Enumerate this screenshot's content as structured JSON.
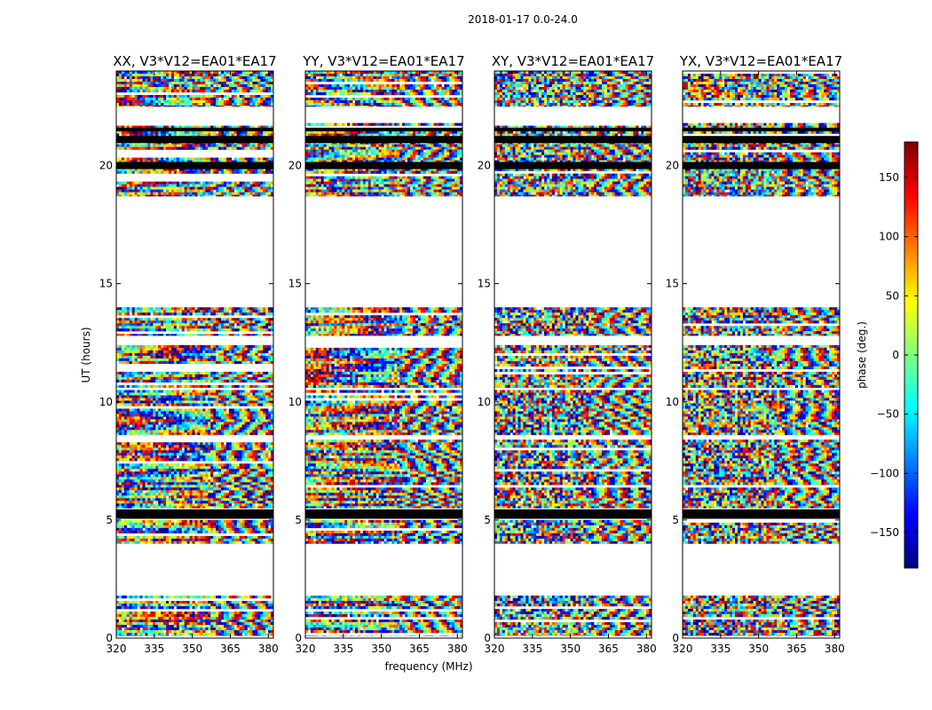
{
  "chart_data": {
    "type": "heatmap",
    "suptitle": "2018-01-17 0.0-24.0",
    "xlabel": "frequency (MHz)",
    "ylabel": "UT (hours)",
    "x_range": [
      320,
      382
    ],
    "x_ticks": [
      "320",
      "335",
      "350",
      "365",
      "380"
    ],
    "y_range": [
      0,
      24
    ],
    "y_ticks": [
      "0",
      "5",
      "10",
      "15",
      "20"
    ],
    "panels": [
      {
        "title": "XX, V3*V12=EA01*EA17",
        "seed": 11,
        "coherent": 1.0
      },
      {
        "title": "YY, V3*V12=EA01*EA17",
        "seed": 23,
        "coherent": 1.0
      },
      {
        "title": "XY, V3*V12=EA01*EA17",
        "seed": 37,
        "coherent": 0.25
      },
      {
        "title": "YX, V3*V12=EA01*EA17",
        "seed": 51,
        "coherent": 0.25
      }
    ],
    "data_bands_hours": [
      [
        0.1,
        1.8
      ],
      [
        4.0,
        5.0
      ],
      [
        5.5,
        8.4
      ],
      [
        8.6,
        10.5
      ],
      [
        10.6,
        12.4
      ],
      [
        12.8,
        14.0
      ],
      [
        18.7,
        21.8
      ],
      [
        22.5,
        24.0
      ]
    ],
    "flagged_bands_hours": [
      [
        5.05,
        5.45
      ],
      [
        19.85,
        20.15
      ],
      [
        20.95,
        21.25
      ],
      [
        21.45,
        21.6
      ]
    ],
    "colorbar": {
      "label": "phase (deg.)",
      "range": [
        -180,
        180
      ],
      "ticks": [
        "150",
        "100",
        "50",
        "0",
        "−50",
        "−100",
        "−150"
      ],
      "tick_values": [
        150,
        100,
        50,
        0,
        -50,
        -100,
        -150
      ],
      "colormap": [
        "#00007f",
        "#0000ff",
        "#007fff",
        "#00ffff",
        "#7fff7f",
        "#ffff00",
        "#ff7f00",
        "#ff0000",
        "#7f0000"
      ]
    }
  }
}
